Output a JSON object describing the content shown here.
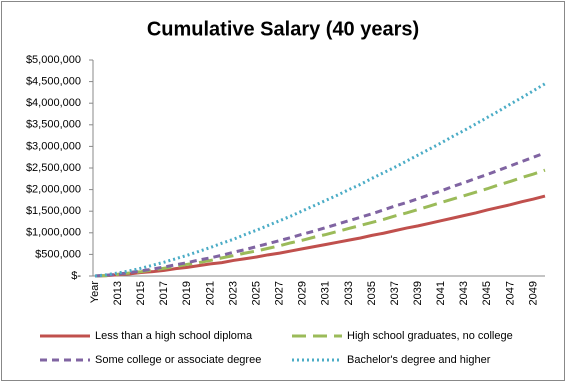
{
  "chart_data": {
    "type": "line",
    "title": "Cumulative Salary (40 years)",
    "categories": [
      "Year",
      null,
      "2013",
      null,
      "2015",
      null,
      "2017",
      null,
      "2019",
      null,
      "2021",
      null,
      "2023",
      null,
      "2025",
      null,
      "2027",
      null,
      "2029",
      null,
      "2031",
      null,
      "2033",
      null,
      "2035",
      null,
      "2037",
      null,
      "2039",
      null,
      "2041",
      null,
      "2043",
      null,
      "2045",
      null,
      "2047",
      null,
      "2049",
      null
    ],
    "series": [
      {
        "name": "Less than a high school diploma",
        "color": "#c0504d",
        "dash": "solid",
        "values": [
          0,
          10000,
          30000,
          50000,
          80000,
          100000,
          130000,
          170000,
          200000,
          240000,
          280000,
          310000,
          360000,
          400000,
          440000,
          490000,
          530000,
          580000,
          630000,
          680000,
          730000,
          780000,
          830000,
          880000,
          940000,
          990000,
          1050000,
          1110000,
          1160000,
          1220000,
          1280000,
          1340000,
          1400000,
          1460000,
          1530000,
          1590000,
          1650000,
          1720000,
          1780000,
          1850000
        ]
      },
      {
        "name": "High school graduates, no college",
        "color": "#9bbb59",
        "dash": "long-dash",
        "values": [
          0,
          10000,
          40000,
          70000,
          100000,
          140000,
          180000,
          220000,
          270000,
          310000,
          360000,
          420000,
          470000,
          530000,
          580000,
          640000,
          700000,
          770000,
          830000,
          900000,
          960000,
          1030000,
          1100000,
          1170000,
          1240000,
          1310000,
          1390000,
          1460000,
          1540000,
          1620000,
          1700000,
          1780000,
          1860000,
          1940000,
          2020000,
          2110000,
          2190000,
          2280000,
          2360000,
          2450000
        ]
      },
      {
        "name": "Some college or associate degree",
        "color": "#8064a2",
        "dash": "dash",
        "values": [
          0,
          20000,
          40000,
          80000,
          120000,
          160000,
          210000,
          260000,
          310000,
          370000,
          420000,
          480000,
          550000,
          610000,
          680000,
          750000,
          820000,
          890000,
          970000,
          1040000,
          1120000,
          1200000,
          1280000,
          1360000,
          1440000,
          1530000,
          1620000,
          1700000,
          1790000,
          1880000,
          1970000,
          2070000,
          2160000,
          2260000,
          2350000,
          2450000,
          2550000,
          2650000,
          2750000,
          2850000
        ]
      },
      {
        "name": "Bachelor's degree and higher",
        "color": "#4bacc6",
        "dash": "dot",
        "values": [
          0,
          30000,
          70000,
          120000,
          180000,
          250000,
          320000,
          400000,
          480000,
          570000,
          660000,
          760000,
          850000,
          960000,
          1060000,
          1170000,
          1280000,
          1390000,
          1510000,
          1630000,
          1750000,
          1870000,
          2000000,
          2120000,
          2260000,
          2390000,
          2520000,
          2660000,
          2800000,
          2940000,
          3080000,
          3230000,
          3370000,
          3520000,
          3670000,
          3820000,
          3980000,
          4130000,
          4290000,
          4450000
        ]
      }
    ],
    "ylim": [
      0,
      5000000
    ],
    "yticks": [
      {
        "value": 0,
        "label": "$-"
      },
      {
        "value": 500000,
        "label": "$500,000"
      },
      {
        "value": 1000000,
        "label": "$1,000,000"
      },
      {
        "value": 1500000,
        "label": "$1,500,000"
      },
      {
        "value": 2000000,
        "label": "$2,000,000"
      },
      {
        "value": 2500000,
        "label": "$2,500,000"
      },
      {
        "value": 3000000,
        "label": "$3,000,000"
      },
      {
        "value": 3500000,
        "label": "$3,500,000"
      },
      {
        "value": 4000000,
        "label": "$4,000,000"
      },
      {
        "value": 4500000,
        "label": "$4,500,000"
      },
      {
        "value": 5000000,
        "label": "$5,000,000"
      }
    ],
    "grid": false,
    "legend": "bottom"
  }
}
